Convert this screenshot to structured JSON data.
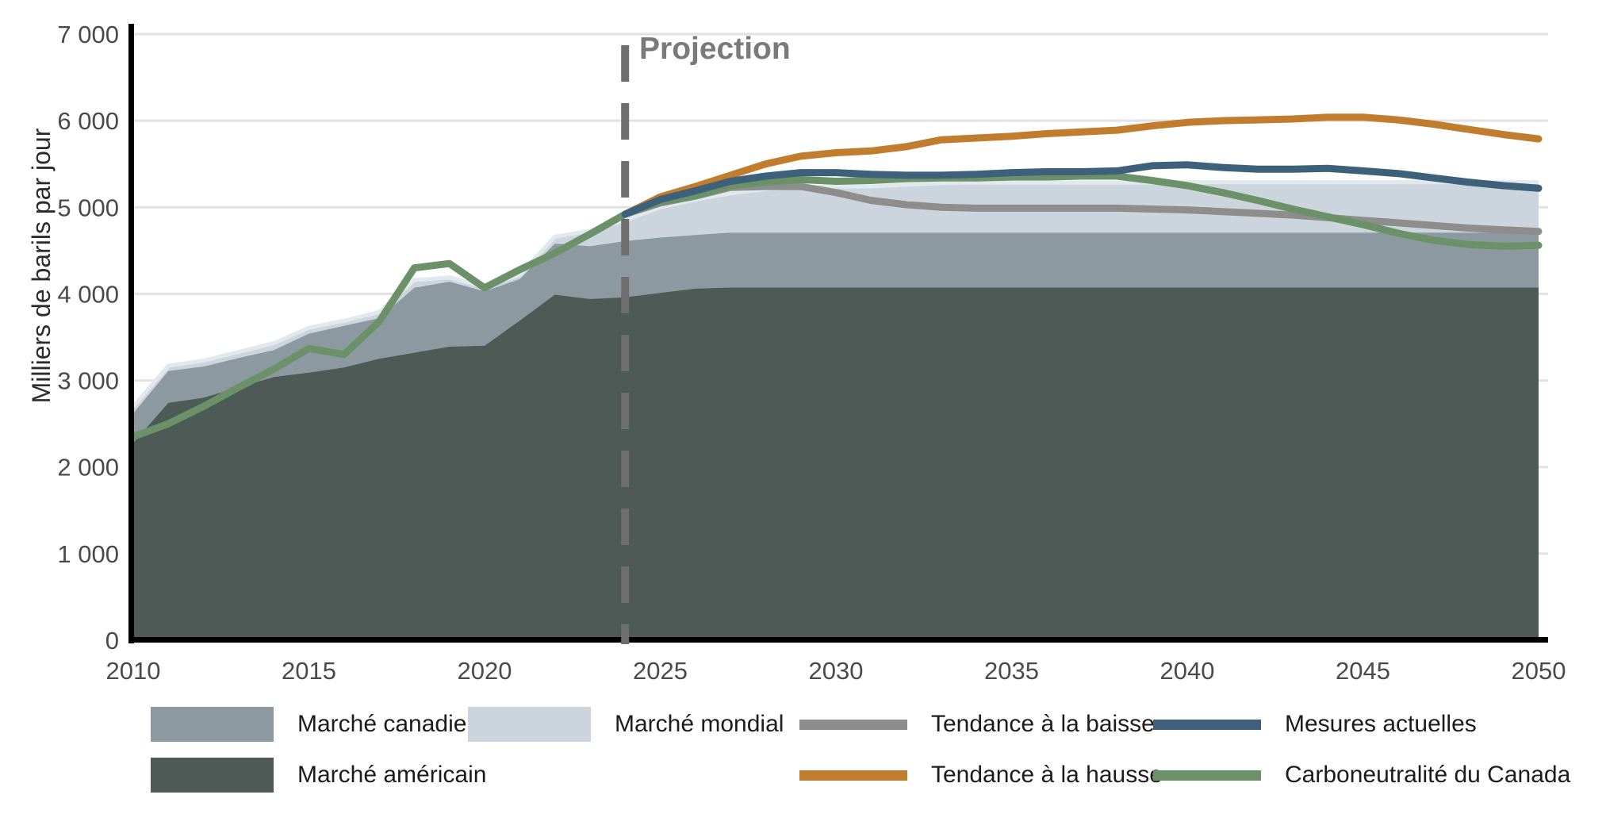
{
  "chart": {
    "ylabel": "Milliers de barils par jour",
    "projection_label": "Projection"
  },
  "legend": {
    "items": [
      {
        "label": "Marché canadien",
        "type": "area",
        "color": "#8d99a0"
      },
      {
        "label": "Marché mondial",
        "type": "area",
        "color": "#ccd5dd"
      },
      {
        "label": "Tendance à la baisse",
        "type": "line",
        "color": "#8d8d8d"
      },
      {
        "label": "Mesures actuelles",
        "type": "line",
        "color": "#3d607b"
      },
      {
        "label": "Marché américain",
        "type": "area",
        "color": "#4d5a56"
      },
      {
        "label": "Tendance à la hausse",
        "type": "line",
        "color": "#c07d2d"
      },
      {
        "label": "Carboneutralité du Canada",
        "type": "line",
        "color": "#6b9168"
      }
    ]
  },
  "chart_data": {
    "type": "area",
    "title": "",
    "ylabel": "Milliers de barils par jour",
    "xlim": [
      2010,
      2050
    ],
    "ylim": [
      0,
      7000
    ],
    "grid": true,
    "projection_x": 2024,
    "x_ticks": [
      2010,
      2015,
      2020,
      2025,
      2030,
      2035,
      2040,
      2045,
      2050
    ],
    "y_ticks": [
      {
        "value": 0,
        "label": "0"
      },
      {
        "value": 1000,
        "label": "1 000"
      },
      {
        "value": 2000,
        "label": "2 000"
      },
      {
        "value": 3000,
        "label": "3 000"
      },
      {
        "value": 4000,
        "label": "4 000"
      },
      {
        "value": 5000,
        "label": "5 000"
      },
      {
        "value": 6000,
        "label": "6 000"
      },
      {
        "value": 7000,
        "label": "7 000"
      }
    ],
    "style": {
      "grid_color": "#e2e2e2",
      "axis_color": "#000000",
      "tick_text_color": "#4a4a4a",
      "projection_line_color": "#6e6e6e",
      "projection_text_color": "#7a7a7a"
    },
    "areas": [
      {
        "name": "Marché mondial",
        "color": "#ccd5dd",
        "edge_color": "#e1e8ee",
        "values": [
          2700,
          3170,
          3230,
          3330,
          3430,
          3610,
          3690,
          3790,
          4160,
          4190,
          4080,
          4220,
          4660,
          4730,
          4850,
          5000,
          5090,
          5160,
          5210,
          5230,
          5240,
          5240,
          5260,
          5280,
          5285,
          5285,
          5285,
          5285,
          5285,
          5285,
          5290,
          5290,
          5290,
          5290,
          5290,
          5290,
          5290,
          5290,
          5290,
          5290,
          5290
        ]
      },
      {
        "name": "Marché canadien",
        "color": "#8d99a0",
        "values": [
          2620,
          3110,
          3160,
          3260,
          3350,
          3540,
          3630,
          3720,
          4070,
          4140,
          4030,
          4170,
          4580,
          4550,
          4610,
          4650,
          4680,
          4707,
          4707,
          4707,
          4707,
          4707,
          4707,
          4707,
          4707,
          4707,
          4707,
          4707,
          4707,
          4707,
          4707,
          4707,
          4707,
          4707,
          4707,
          4707,
          4707,
          4707,
          4707,
          4707,
          4707
        ]
      },
      {
        "name": "Marché américain",
        "color": "#4d5a56",
        "values": [
          2280,
          2740,
          2800,
          2920,
          3040,
          3090,
          3150,
          3250,
          3320,
          3390,
          3400,
          3690,
          3990,
          3940,
          3960,
          4010,
          4060,
          4073,
          4073,
          4073,
          4073,
          4073,
          4073,
          4073,
          4073,
          4073,
          4073,
          4073,
          4073,
          4073,
          4073,
          4073,
          4073,
          4073,
          4073,
          4073,
          4073,
          4073,
          4073,
          4073,
          4073
        ]
      }
    ],
    "series": [
      {
        "name": "Tendance à la baisse",
        "color": "#8d8d8d",
        "start_year": 2024,
        "values": [
          4920,
          5050,
          5130,
          5230,
          5240,
          5240,
          5170,
          5080,
          5030,
          5000,
          4990,
          4990,
          4990,
          4990,
          4990,
          4980,
          4970,
          4950,
          4930,
          4910,
          4880,
          4850,
          4820,
          4790,
          4760,
          4740,
          4720
        ]
      },
      {
        "name": "Tendance à la hausse",
        "color": "#c07d2d",
        "start_year": 2024,
        "values": [
          4920,
          5120,
          5240,
          5370,
          5500,
          5590,
          5630,
          5650,
          5700,
          5780,
          5800,
          5820,
          5850,
          5870,
          5890,
          5940,
          5980,
          6000,
          6010,
          6020,
          6040,
          6040,
          6010,
          5960,
          5900,
          5840,
          5790
        ]
      },
      {
        "name": "Carboneutralité du Canada",
        "color": "#6b9168",
        "start_year": 2010,
        "values": [
          2350,
          2500,
          2700,
          2920,
          3130,
          3370,
          3300,
          3680,
          4300,
          4350,
          4070,
          4280,
          4470,
          4690,
          4920,
          5060,
          5130,
          5250,
          5290,
          5320,
          5300,
          5310,
          5330,
          5340,
          5340,
          5350,
          5350,
          5360,
          5360,
          5310,
          5250,
          5170,
          5080,
          4980,
          4890,
          4800,
          4700,
          4620,
          4570,
          4550,
          4560
        ]
      },
      {
        "name": "Mesures actuelles",
        "color": "#3d607b",
        "start_year": 2024,
        "values": [
          4920,
          5090,
          5190,
          5300,
          5360,
          5400,
          5400,
          5380,
          5370,
          5370,
          5380,
          5400,
          5410,
          5410,
          5420,
          5480,
          5490,
          5460,
          5440,
          5440,
          5450,
          5420,
          5390,
          5340,
          5290,
          5250,
          5220
        ]
      }
    ]
  }
}
